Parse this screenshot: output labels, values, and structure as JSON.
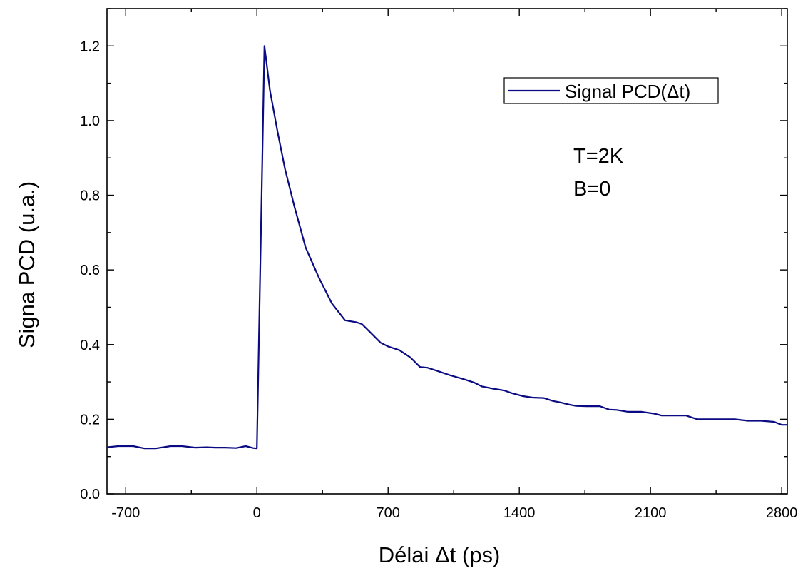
{
  "chart_data": {
    "type": "line",
    "title": "",
    "xlabel": "Délai Δt (ps)",
    "ylabel": "Signa PCD (u.a.)",
    "xlim": [
      -800,
      2830
    ],
    "ylim": [
      0.0,
      1.3
    ],
    "xticks": [
      -700,
      0,
      700,
      1400,
      2100,
      2800
    ],
    "xtick_labels": [
      "-700",
      "0",
      "700",
      "1400",
      "2100",
      "2800"
    ],
    "yticks": [
      0.0,
      0.2,
      0.4,
      0.6,
      0.8,
      1.0,
      1.2
    ],
    "ytick_labels": [
      "0.0",
      "0.2",
      "0.4",
      "0.6",
      "0.8",
      "1.0",
      "1.2"
    ],
    "grid": false,
    "legend_position": "top-right",
    "series": [
      {
        "name": "Signal PCD(Δt)",
        "color": "#0a0a82",
        "x": [
          -800,
          -740,
          -660,
          -600,
          -540,
          -460,
          -400,
          -330,
          -270,
          -220,
          -170,
          -110,
          -60,
          -20,
          0,
          40,
          70,
          110,
          150,
          200,
          260,
          330,
          400,
          470,
          530,
          560,
          590,
          620,
          660,
          700,
          760,
          820,
          870,
          910,
          960,
          1030,
          1100,
          1160,
          1200,
          1260,
          1320,
          1360,
          1420,
          1470,
          1530,
          1580,
          1620,
          1660,
          1700,
          1760,
          1830,
          1880,
          1920,
          1980,
          2050,
          2120,
          2160,
          2220,
          2290,
          2350,
          2420,
          2490,
          2550,
          2620,
          2690,
          2760,
          2800,
          2830
        ],
        "y": [
          0.125,
          0.128,
          0.128,
          0.122,
          0.122,
          0.128,
          0.128,
          0.124,
          0.125,
          0.124,
          0.124,
          0.123,
          0.128,
          0.123,
          0.122,
          1.2,
          1.08,
          0.97,
          0.87,
          0.77,
          0.66,
          0.58,
          0.51,
          0.465,
          0.46,
          0.455,
          0.44,
          0.425,
          0.405,
          0.395,
          0.385,
          0.365,
          0.34,
          0.338,
          0.33,
          0.318,
          0.308,
          0.298,
          0.288,
          0.282,
          0.277,
          0.27,
          0.262,
          0.258,
          0.257,
          0.249,
          0.245,
          0.24,
          0.236,
          0.235,
          0.235,
          0.226,
          0.225,
          0.22,
          0.22,
          0.215,
          0.21,
          0.21,
          0.21,
          0.2,
          0.2,
          0.2,
          0.2,
          0.196,
          0.196,
          0.193,
          0.185,
          0.185
        ]
      }
    ],
    "annotations": [
      "T=2K",
      "B=0"
    ]
  }
}
